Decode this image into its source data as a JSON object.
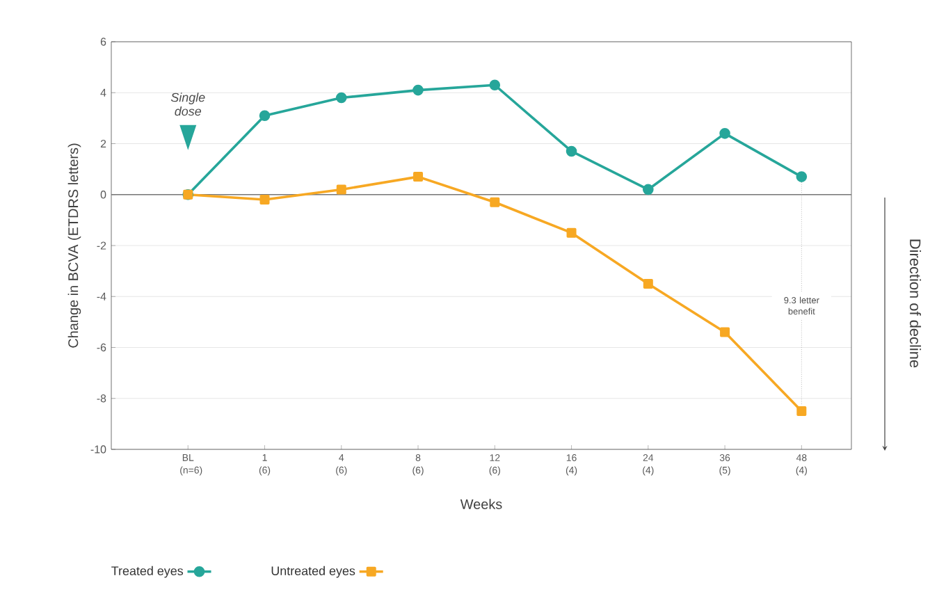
{
  "chart_data": {
    "type": "line",
    "xlabel": "Weeks",
    "ylabel": "Change in BCVA (ETDRS letters)",
    "categories": [
      "BL (n=6)",
      "1 (6)",
      "4 (6)",
      "8 (6)",
      "12 (6)",
      "16 (4)",
      "24 (4)",
      "36 (5)",
      "48 (4)"
    ],
    "series": [
      {
        "name": "Treated eyes",
        "color": "#26a69a",
        "marker": "circle",
        "values": [
          0,
          3.1,
          3.8,
          4.1,
          4.3,
          1.7,
          0.2,
          2.4,
          0.7
        ]
      },
      {
        "name": "Untreated eyes",
        "color": "#f7a823",
        "marker": "square",
        "values": [
          0,
          -0.2,
          0.2,
          0.7,
          -0.3,
          -1.5,
          -3.5,
          -5.4,
          -8.5
        ]
      }
    ],
    "ylim": [
      -10,
      6
    ],
    "yticks": [
      -10,
      -8,
      -6,
      -4,
      -2,
      0,
      2,
      4,
      6
    ],
    "grid": "y",
    "legend": "bottom",
    "ref_lines": [
      {
        "axis": "y",
        "value": 0,
        "color": "#777777"
      }
    ],
    "annotations": [
      "Single dose",
      "9.3 letter benefit",
      "Direction of decline"
    ]
  }
}
